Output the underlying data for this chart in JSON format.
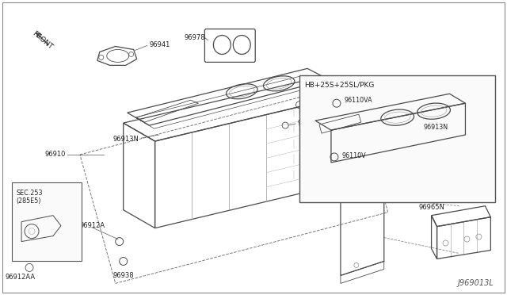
{
  "bg_color": "#ffffff",
  "line_color": "#4a4a4a",
  "diagram_id": "J969013L",
  "inset_label": "HB+25S+25SL/PKG",
  "sec253_label": "SEC.253\n(285E5)"
}
